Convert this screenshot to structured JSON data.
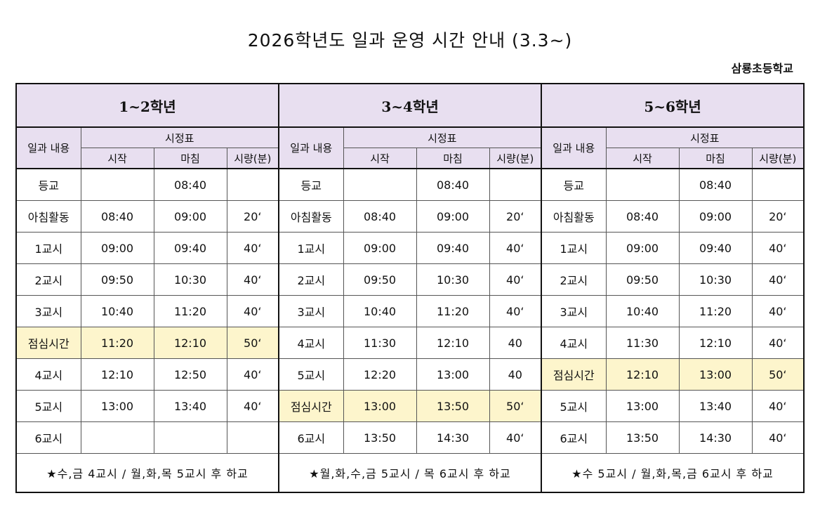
{
  "title": "2026학년도 일과 운영 시간 안내 (3.3~)",
  "school": "삼룡초등학교",
  "headers": {
    "activity": "일과 내용",
    "schedule": "시정표",
    "start": "시작",
    "end": "마침",
    "duration": "시량(분)"
  },
  "colors": {
    "header_bg": "#e8dff0",
    "lunch_bg": "#fdf5cc"
  },
  "grades": [
    {
      "label": "1~2학년",
      "rows": [
        {
          "name": "등교",
          "start": "",
          "end": "08:40",
          "dur": "",
          "lunch": false
        },
        {
          "name": "아침활동",
          "start": "08:40",
          "end": "09:00",
          "dur": "20‘",
          "lunch": false
        },
        {
          "name": "1교시",
          "start": "09:00",
          "end": "09:40",
          "dur": "40‘",
          "lunch": false
        },
        {
          "name": "2교시",
          "start": "09:50",
          "end": "10:30",
          "dur": "40‘",
          "lunch": false
        },
        {
          "name": "3교시",
          "start": "10:40",
          "end": "11:20",
          "dur": "40‘",
          "lunch": false
        },
        {
          "name": "점심시간",
          "start": "11:20",
          "end": "12:10",
          "dur": "50‘",
          "lunch": true
        },
        {
          "name": "4교시",
          "start": "12:10",
          "end": "12:50",
          "dur": "40‘",
          "lunch": false
        },
        {
          "name": "5교시",
          "start": "13:00",
          "end": "13:40",
          "dur": "40‘",
          "lunch": false
        },
        {
          "name": "6교시",
          "start": "",
          "end": "",
          "dur": "",
          "lunch": false
        }
      ],
      "note": "★수,금 4교시 / 월,화,목 5교시 후 하교"
    },
    {
      "label": "3~4학년",
      "rows": [
        {
          "name": "등교",
          "start": "",
          "end": "08:40",
          "dur": "",
          "lunch": false
        },
        {
          "name": "아침활동",
          "start": "08:40",
          "end": "09:00",
          "dur": "20‘",
          "lunch": false
        },
        {
          "name": "1교시",
          "start": "09:00",
          "end": "09:40",
          "dur": "40‘",
          "lunch": false
        },
        {
          "name": "2교시",
          "start": "09:50",
          "end": "10:30",
          "dur": "40‘",
          "lunch": false
        },
        {
          "name": "3교시",
          "start": "10:40",
          "end": "11:20",
          "dur": "40‘",
          "lunch": false
        },
        {
          "name": "4교시",
          "start": "11:30",
          "end": "12:10",
          "dur": "40",
          "lunch": false
        },
        {
          "name": "5교시",
          "start": "12:20",
          "end": "13:00",
          "dur": "40",
          "lunch": false
        },
        {
          "name": "점심시간",
          "start": "13:00",
          "end": "13:50",
          "dur": "50‘",
          "lunch": true
        },
        {
          "name": "6교시",
          "start": "13:50",
          "end": "14:30",
          "dur": "40‘",
          "lunch": false
        }
      ],
      "note": "★월,화,수,금 5교시 / 목 6교시 후 하교"
    },
    {
      "label": "5~6학년",
      "rows": [
        {
          "name": "등교",
          "start": "",
          "end": "08:40",
          "dur": "",
          "lunch": false
        },
        {
          "name": "아침활동",
          "start": "08:40",
          "end": "09:00",
          "dur": "20‘",
          "lunch": false
        },
        {
          "name": "1교시",
          "start": "09:00",
          "end": "09:40",
          "dur": "40‘",
          "lunch": false
        },
        {
          "name": "2교시",
          "start": "09:50",
          "end": "10:30",
          "dur": "40‘",
          "lunch": false
        },
        {
          "name": "3교시",
          "start": "10:40",
          "end": "11:20",
          "dur": "40‘",
          "lunch": false
        },
        {
          "name": "4교시",
          "start": "11:30",
          "end": "12:10",
          "dur": "40‘",
          "lunch": false
        },
        {
          "name": "점심시간",
          "start": "12:10",
          "end": "13:00",
          "dur": "50‘",
          "lunch": true
        },
        {
          "name": "5교시",
          "start": "13:00",
          "end": "13:40",
          "dur": "40‘",
          "lunch": false
        },
        {
          "name": "6교시",
          "start": "13:50",
          "end": "14:30",
          "dur": "40‘",
          "lunch": false
        }
      ],
      "note": "★수 5교시 / 월,화,목,금 6교시 후 하교"
    }
  ]
}
